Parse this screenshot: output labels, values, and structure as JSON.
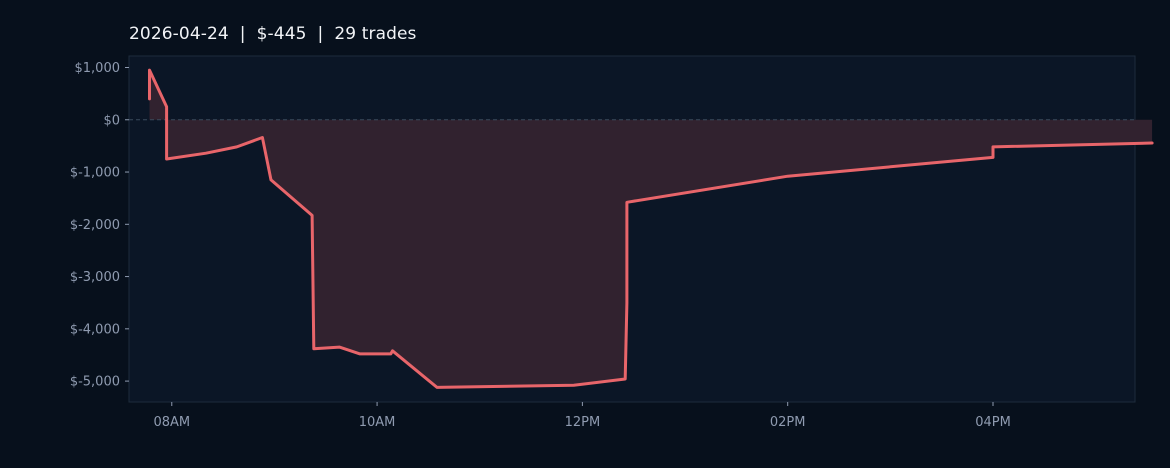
{
  "chart_data": {
    "type": "area",
    "title": "2026-04-24  |  $-445  |  29 trades",
    "xlabel": "",
    "ylabel": "",
    "x_ticks": [
      "08AM",
      "10AM",
      "12PM",
      "02PM",
      "04PM"
    ],
    "y_ticks": [
      "$1,000",
      "$0",
      "$-1,000",
      "$-2,000",
      "$-3,000",
      "$-4,000",
      "$-5,000"
    ],
    "y_tick_values": [
      1000,
      0,
      -1000,
      -2000,
      -3000,
      -4000,
      -5000
    ],
    "x_tick_values": [
      "08:00",
      "10:00",
      "12:00",
      "14:00",
      "16:00"
    ],
    "xlim": [
      "07:35",
      "17:23"
    ],
    "ylim": [
      -5400,
      1220
    ],
    "baseline": 0,
    "grid": false,
    "colors": {
      "line": "#e8656a",
      "fill": "#31222f",
      "plot_background": "#0b1626",
      "page_background": "#07101c",
      "zero_line": "#3a4a5c",
      "axis_text": "#8f9bb0",
      "title_text": "#f2f4f7"
    },
    "series": [
      {
        "x": [
          "07:47",
          "07:47",
          "07:57",
          "07:57",
          "08:20",
          "08:38",
          "08:53",
          "08:58",
          "09:22",
          "09:23",
          "09:38",
          "09:50",
          "10:08",
          "10:09",
          "10:35",
          "11:55",
          "12:25",
          "12:26",
          "12:26",
          "12:26",
          "14:00",
          "16:00",
          "16:00",
          "17:33"
        ],
        "y": [
          400,
          950,
          250,
          -750,
          -640,
          -520,
          -340,
          -1150,
          -1830,
          -4380,
          -4350,
          -4480,
          -4480,
          -4420,
          -5120,
          -5080,
          -4960,
          -3500,
          -2000,
          -1580,
          -1080,
          -720,
          -520,
          -445
        ]
      }
    ]
  }
}
